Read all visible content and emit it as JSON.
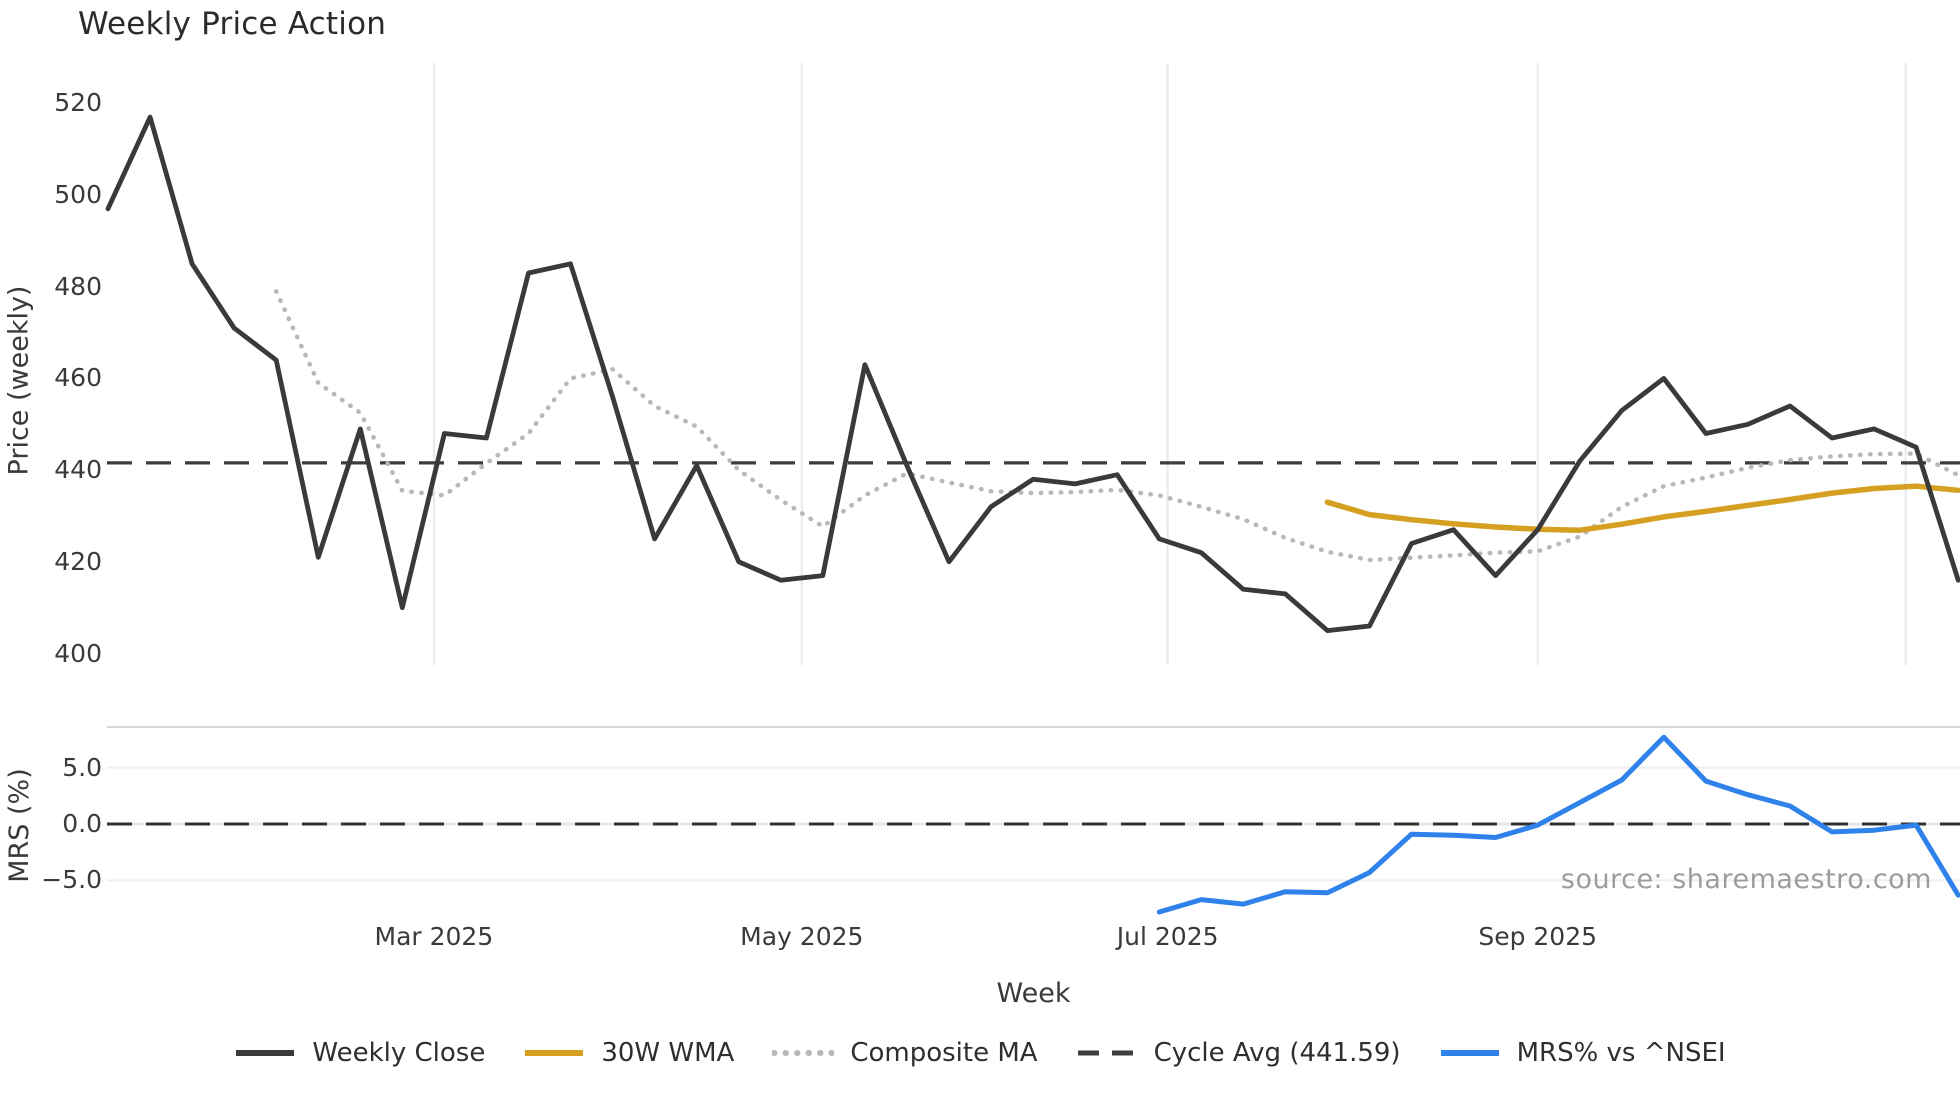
{
  "title": "Weekly Price Action",
  "watermark": "source: sharemaestro.com",
  "axes": {
    "price_label": "Price (weekly)",
    "mrs_label": "MRS (%)",
    "x_label": "Week"
  },
  "colors": {
    "weekly_close": "#3a3a3a",
    "wma30": "#d5a021",
    "composite_ma": "#b8b8b8",
    "cycle_avg": "#3d3d3d",
    "mrs": "#2e82ea",
    "gridline": "#e8e8ef",
    "gridline_soft": "#ededf2",
    "panel_spine": "#cbcbcb",
    "tick_text": "#3a3a3a",
    "watermark_text": "#9c9c9c"
  },
  "legend": [
    {
      "label": "Weekly Close",
      "color": "#3a3a3a",
      "style": "solid"
    },
    {
      "label": "30W WMA",
      "color": "#d5a021",
      "style": "solid"
    },
    {
      "label": "Composite MA",
      "color": "#b8b8b8",
      "style": "dotted"
    },
    {
      "label": "Cycle Avg (441.59)",
      "color": "#3d3d3d",
      "style": "dashed"
    },
    {
      "label": "MRS% vs ^NSEI",
      "color": "#2e82ea",
      "style": "solid"
    }
  ],
  "chart_data": [
    {
      "type": "line",
      "panel": "price",
      "title": "Weekly Price Action",
      "xlabel": "Week",
      "ylabel": "Price (weekly)",
      "n_weeks": 45,
      "ylim": [
        397.5,
        528.8
      ],
      "yticks": [
        "520",
        "500",
        "480",
        "460",
        "440",
        "420",
        "400"
      ],
      "ytick_values": [
        520,
        500,
        480,
        460,
        440,
        420,
        400
      ],
      "x_ticks": [
        {
          "label": "Mar 2025",
          "week": 7.75
        },
        {
          "label": "May 2025",
          "week": 16.5
        },
        {
          "label": "Jul 2025",
          "week": 25.2
        },
        {
          "label": "Sep 2025",
          "week": 34.0
        },
        {
          "label": "",
          "week": 42.75
        }
      ],
      "reference_line": {
        "name": "Cycle Avg",
        "value": 441.59,
        "style": "dashed"
      },
      "series": [
        {
          "name": "Weekly Close",
          "style": "solid",
          "start_week": 0,
          "values": [
            497,
            517,
            485,
            471,
            464,
            421,
            449,
            410,
            448,
            447,
            483,
            485,
            456,
            425,
            441,
            420,
            416,
            417,
            463,
            441,
            420,
            432,
            438,
            437,
            439,
            425,
            422,
            414,
            413,
            405,
            406,
            424,
            427,
            417,
            427,
            442,
            453,
            460,
            448,
            450,
            454,
            447,
            449,
            445,
            416
          ]
        },
        {
          "name": "30W WMA",
          "style": "solid",
          "start_week": 29,
          "values": [
            433,
            430.3,
            429.2,
            428.3,
            427.6,
            427.1,
            426.9,
            428.2,
            429.8,
            431,
            432.3,
            433.6,
            435,
            436,
            436.5,
            435.6
          ]
        },
        {
          "name": "Composite MA",
          "style": "dotted",
          "start_week": 4,
          "values": [
            479,
            459,
            452.5,
            435.5,
            434.5,
            441.5,
            448,
            460,
            462,
            454,
            449.5,
            440,
            433.5,
            427.7,
            434.5,
            439.3,
            437.3,
            435.4,
            435,
            435.2,
            435.7,
            434.5,
            432,
            429.3,
            425.2,
            422.2,
            420.4,
            420.9,
            421.4,
            422,
            422.3,
            425.5,
            432,
            436.5,
            438.4,
            440.5,
            442.2,
            443,
            443.5,
            443.6,
            438.9
          ]
        }
      ]
    },
    {
      "type": "line",
      "panel": "mrs",
      "ylabel": "MRS (%)",
      "ylim": [
        -8.6,
        8.6
      ],
      "yticks": [
        "5.0",
        "0.0",
        "−5.0"
      ],
      "ytick_values": [
        5.0,
        0.0,
        -5.0
      ],
      "zero_line": {
        "style": "dashed",
        "value": 0.0
      },
      "series": [
        {
          "name": "MRS% vs ^NSEI",
          "style": "solid",
          "start_week": 25,
          "values": [
            -7.8,
            -6.7,
            -7.1,
            -6.0,
            -6.1,
            -4.3,
            -0.9,
            -1.0,
            -1.2,
            -0.1,
            1.9,
            3.9,
            7.7,
            3.8,
            2.6,
            1.6,
            -0.7,
            -0.55,
            -0.1,
            -6.3
          ]
        }
      ]
    }
  ]
}
